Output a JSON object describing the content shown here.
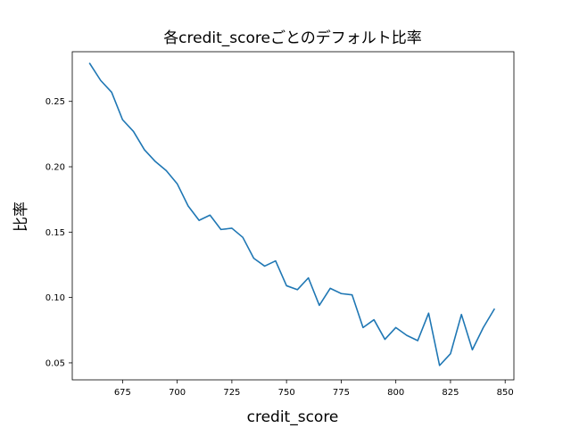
{
  "chart_data": {
    "type": "line",
    "title": "各credit_scoreごとのデフォルト比率",
    "xlabel": "credit_score",
    "ylabel": "比率",
    "xlim": [
      652,
      854
    ],
    "ylim": [
      0.037,
      0.288
    ],
    "xticks": [
      675,
      700,
      725,
      750,
      775,
      800,
      825,
      850
    ],
    "yticks": [
      0.05,
      0.1,
      0.15,
      0.2,
      0.25
    ],
    "ytick_labels": [
      "0.05",
      "0.10",
      "0.15",
      "0.20",
      "0.25"
    ],
    "grid": false,
    "series": [
      {
        "color": "#1f77b4",
        "x": [
          660,
          665,
          670,
          675,
          680,
          685,
          690,
          695,
          700,
          705,
          710,
          715,
          720,
          725,
          730,
          735,
          740,
          745,
          750,
          755,
          760,
          765,
          770,
          775,
          780,
          785,
          790,
          795,
          800,
          805,
          810,
          815,
          820,
          825,
          830,
          835,
          840,
          845
        ],
        "y": [
          0.279,
          0.266,
          0.257,
          0.236,
          0.227,
          0.213,
          0.204,
          0.197,
          0.187,
          0.17,
          0.159,
          0.163,
          0.152,
          0.153,
          0.146,
          0.13,
          0.124,
          0.128,
          0.109,
          0.106,
          0.115,
          0.094,
          0.107,
          0.103,
          0.102,
          0.077,
          0.083,
          0.068,
          0.077,
          0.071,
          0.067,
          0.088,
          0.048,
          0.057,
          0.087,
          0.06,
          0.077,
          0.091
        ]
      }
    ]
  }
}
